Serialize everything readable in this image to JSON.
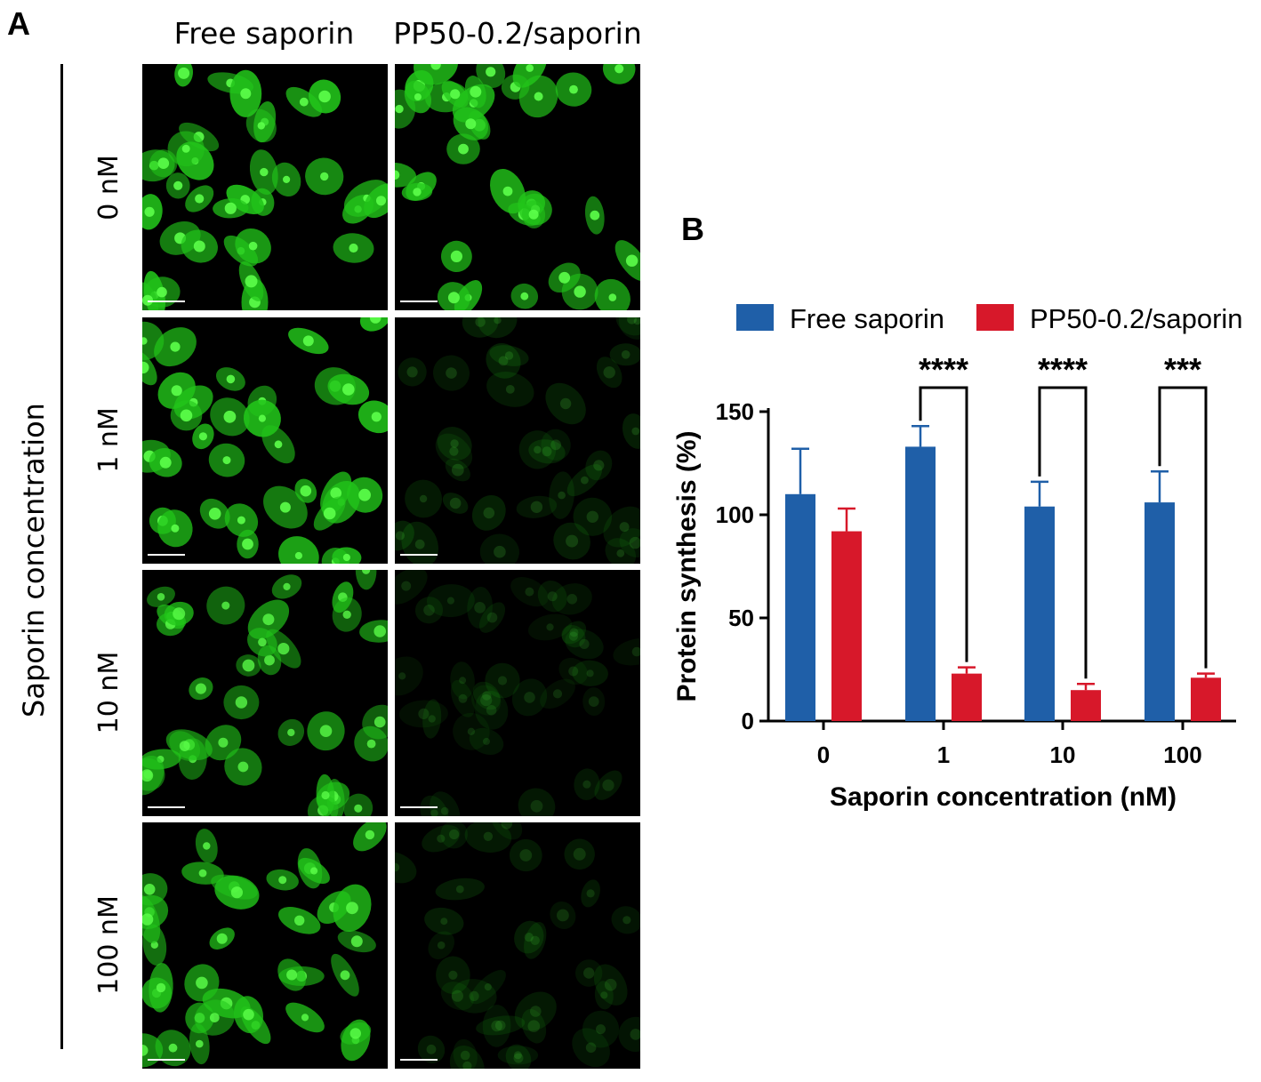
{
  "panel_a": {
    "letter": "A",
    "column_headers": [
      "Free saporin",
      "PP50-0.2/saporin"
    ],
    "row_labels": [
      "0 nM",
      "1 nM",
      "10 nM",
      "100 nM"
    ],
    "side_label": "Saporin concentration",
    "image_grid": [
      {
        "row": "0 nM",
        "free_intensity": 1.0,
        "pp50_intensity": 1.0
      },
      {
        "row": "1 nM",
        "free_intensity": 1.0,
        "pp50_intensity": 0.18
      },
      {
        "row": "10 nM",
        "free_intensity": 0.85,
        "pp50_intensity": 0.14
      },
      {
        "row": "100 nM",
        "free_intensity": 0.9,
        "pp50_intensity": 0.16
      }
    ],
    "cell_color": "#22c51a"
  },
  "panel_b": {
    "letter": "B"
  },
  "chart_data": {
    "type": "bar",
    "categories": [
      "0",
      "1",
      "10",
      "100"
    ],
    "series": [
      {
        "name": "Free saporin",
        "color": "#1f5fa8",
        "values": [
          110,
          133,
          104,
          106
        ],
        "errors": [
          22,
          10,
          12,
          15
        ]
      },
      {
        "name": "PP50-0.2/saporin",
        "color": "#d7182a",
        "values": [
          92,
          23,
          15,
          21
        ],
        "errors": [
          11,
          3,
          3,
          2
        ]
      }
    ],
    "significance": [
      {
        "category": "1",
        "label": "****"
      },
      {
        "category": "10",
        "label": "****"
      },
      {
        "category": "100",
        "label": "***"
      }
    ],
    "xlabel": "Saporin concentration (nM)",
    "ylabel": "Protein synthesis  (%)",
    "ylim": [
      0,
      150
    ],
    "yticks": [
      0,
      50,
      100,
      150
    ],
    "legend_position": "top",
    "grid": false
  }
}
